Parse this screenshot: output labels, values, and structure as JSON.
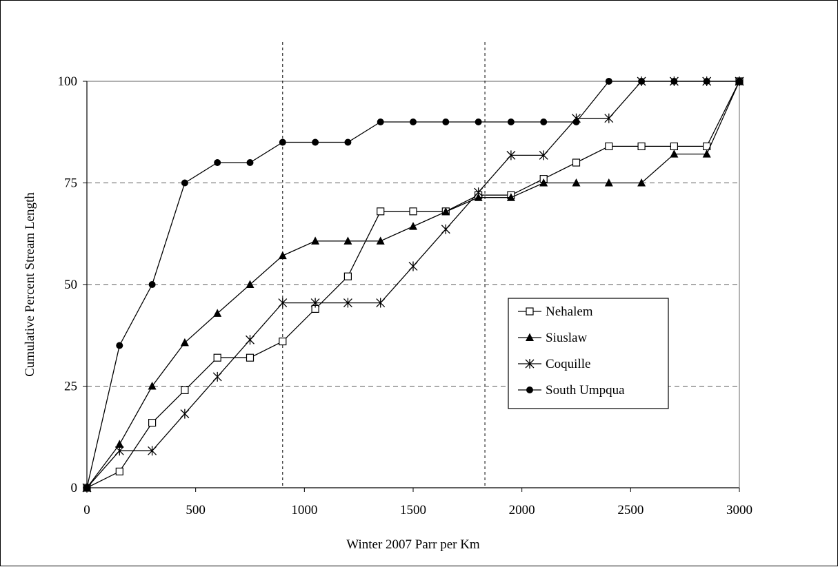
{
  "chart_data": {
    "type": "line",
    "title": "",
    "xlabel": "Winter 2007 Parr per Km",
    "ylabel": "Cumulative Percent Stream Length",
    "xlim": [
      0,
      3000
    ],
    "ylim": [
      0,
      100
    ],
    "x_ticks": [
      "0",
      "500",
      "1000",
      "1500",
      "2000",
      "2500",
      "3000"
    ],
    "y_ticks": [
      "0",
      "25",
      "50",
      "75",
      "100"
    ],
    "grid": "horizontal dashed at 25, 50, 75; solid at 100",
    "reference_lines_x": [
      900,
      1830
    ],
    "legend_position": "right-center",
    "series": [
      {
        "name": "Nehalem",
        "marker": "open-square",
        "x": [
          0,
          150,
          300,
          450,
          600,
          750,
          900,
          1050,
          1200,
          1350,
          1500,
          1650,
          1800,
          1950,
          2100,
          2250,
          2400,
          2550,
          2700,
          2850,
          3000
        ],
        "y": [
          0,
          4,
          16,
          24,
          32,
          32,
          36,
          44,
          52,
          68,
          68,
          68,
          72,
          72,
          76,
          80,
          84,
          84,
          84,
          84,
          100
        ]
      },
      {
        "name": "Siuslaw",
        "marker": "filled-triangle",
        "x": [
          0,
          150,
          300,
          450,
          600,
          750,
          900,
          1050,
          1200,
          1350,
          1500,
          1650,
          1800,
          1950,
          2100,
          2250,
          2400,
          2550,
          2700,
          2850,
          3000
        ],
        "y": [
          0,
          10.7,
          25,
          35.7,
          42.9,
          50,
          57.1,
          60.7,
          60.7,
          60.7,
          64.3,
          67.9,
          71.4,
          71.4,
          75,
          75,
          75,
          75,
          82.1,
          82.1,
          100
        ]
      },
      {
        "name": "Coquille",
        "marker": "asterisk",
        "x": [
          0,
          150,
          300,
          450,
          600,
          750,
          900,
          1050,
          1200,
          1350,
          1500,
          1650,
          1800,
          1950,
          2100,
          2250,
          2400,
          2550,
          2700,
          2850,
          3000
        ],
        "y": [
          0,
          9.1,
          9.1,
          18.2,
          27.3,
          36.4,
          45.5,
          45.5,
          45.5,
          45.5,
          54.5,
          63.6,
          72.7,
          81.8,
          81.8,
          90.9,
          90.9,
          100,
          100,
          100,
          100
        ]
      },
      {
        "name": "South Umpqua",
        "marker": "filled-circle",
        "x": [
          0,
          150,
          300,
          450,
          600,
          750,
          900,
          1050,
          1200,
          1350,
          1500,
          1650,
          1800,
          1950,
          2100,
          2250,
          2400,
          2550,
          2700,
          2850,
          3000
        ],
        "y": [
          0,
          35,
          50,
          75,
          80,
          80,
          85,
          85,
          85,
          90,
          90,
          90,
          90,
          90,
          90,
          90,
          100,
          100,
          100,
          100,
          100
        ]
      }
    ]
  }
}
